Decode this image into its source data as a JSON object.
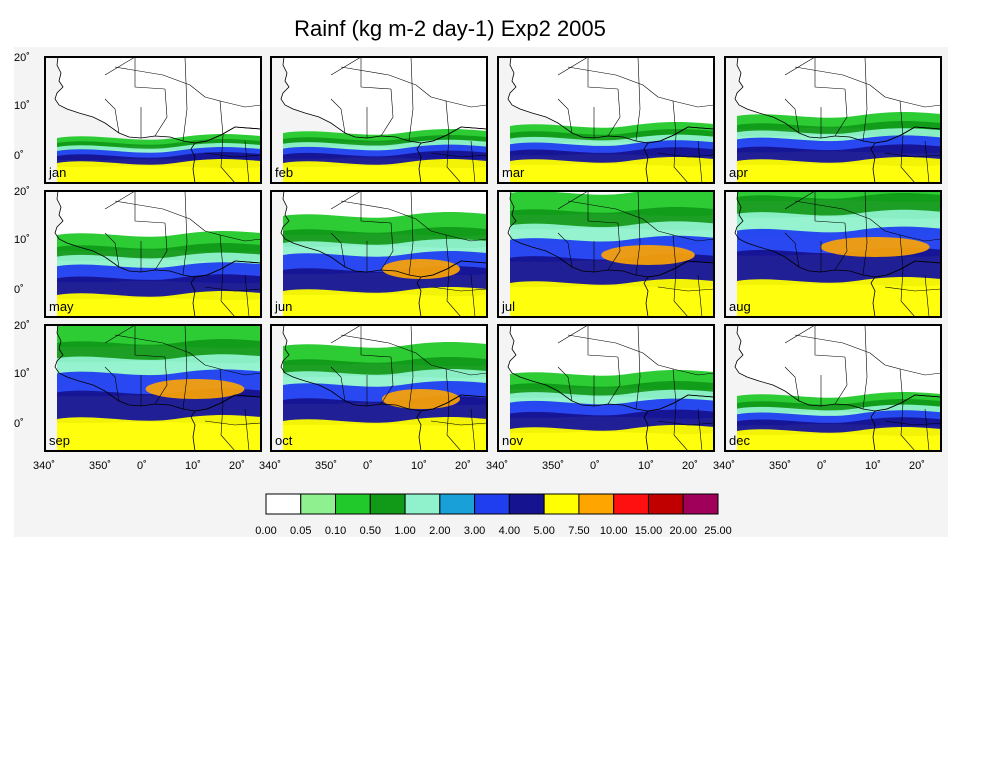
{
  "title": "Rainf (kg m-2 day-1) Exp2 2005",
  "months": [
    "jan",
    "feb",
    "mar",
    "apr",
    "may",
    "jun",
    "jul",
    "aug",
    "sep",
    "oct",
    "nov",
    "dec"
  ],
  "lat_ticks": [
    "20˚",
    "10˚",
    "0˚"
  ],
  "lon_ticks": [
    "340˚",
    "350˚",
    "0˚",
    "10˚",
    "20˚"
  ],
  "colorbar": {
    "labels": [
      "0.00",
      "0.05",
      "0.10",
      "0.50",
      "1.00",
      "2.00",
      "3.00",
      "4.00",
      "5.00",
      "7.50",
      "10.00",
      "15.00",
      "20.00",
      "25.00"
    ],
    "colors": [
      "#ffffff",
      "#8ef08e",
      "#22c92a",
      "#109a18",
      "#8ff2cc",
      "#1aa0d8",
      "#1f3ef0",
      "#15138f",
      "#ffff00",
      "#ffa500",
      "#ff1010",
      "#c00000",
      "#a0005a"
    ]
  },
  "land_color": "#f4f4f4",
  "frame_color": "#000000"
}
